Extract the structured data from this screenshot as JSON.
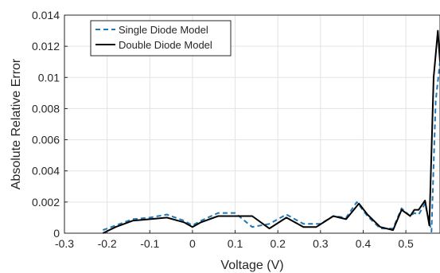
{
  "chart_data": {
    "type": "line",
    "xlabel": "Voltage (V)",
    "ylabel": "Absolute Relative Error",
    "xlim": [
      -0.3,
      0.58
    ],
    "ylim": [
      0,
      0.014
    ],
    "x_ticks": [
      -0.3,
      -0.2,
      -0.1,
      0,
      0.1,
      0.2,
      0.3,
      0.4,
      0.5
    ],
    "x_tick_labels": [
      "-0.3",
      "-0.2",
      "-0.1",
      "0",
      "0.1",
      "0.2",
      "0.3",
      "0.4",
      "0.5"
    ],
    "y_ticks": [
      0,
      0.002,
      0.004,
      0.006,
      0.008,
      0.01,
      0.012,
      0.014
    ],
    "y_tick_labels": [
      "0",
      "0.002",
      "0.004",
      "0.006",
      "0.008",
      "0.01",
      "0.012",
      "0.014"
    ],
    "grid": true,
    "legend_position": "top-left",
    "series": [
      {
        "name": "Single Diode Model",
        "style": "dashed",
        "color": "#1f77b4",
        "x": [
          -0.21,
          -0.18,
          -0.14,
          -0.1,
          -0.06,
          -0.02,
          0.0,
          0.02,
          0.06,
          0.1,
          0.14,
          0.18,
          0.22,
          0.26,
          0.3,
          0.33,
          0.36,
          0.385,
          0.41,
          0.44,
          0.47,
          0.49,
          0.51,
          0.52,
          0.53,
          0.545,
          0.56,
          0.57,
          0.58
        ],
        "y": [
          0.0002,
          0.0005,
          0.0009,
          0.001,
          0.0012,
          0.0008,
          0.0005,
          0.0008,
          0.0013,
          0.0013,
          0.0004,
          0.0006,
          0.0012,
          0.0006,
          0.0006,
          0.0011,
          0.001,
          0.002,
          0.0011,
          0.0003,
          0.0003,
          0.0016,
          0.0011,
          0.0013,
          0.0012,
          0.0019,
          0.0001,
          0.0085,
          0.011
        ]
      },
      {
        "name": "Double Diode Model",
        "style": "solid",
        "color": "#000000",
        "x": [
          -0.21,
          -0.18,
          -0.14,
          -0.1,
          -0.06,
          -0.02,
          0.0,
          0.02,
          0.06,
          0.1,
          0.14,
          0.18,
          0.22,
          0.26,
          0.29,
          0.33,
          0.36,
          0.39,
          0.41,
          0.44,
          0.47,
          0.49,
          0.51,
          0.52,
          0.53,
          0.545,
          0.555,
          0.565,
          0.575,
          0.58
        ],
        "y": [
          0.0,
          0.0004,
          0.0008,
          0.0009,
          0.001,
          0.0007,
          0.0004,
          0.0007,
          0.0011,
          0.0011,
          0.0011,
          0.0003,
          0.001,
          0.0004,
          0.0004,
          0.0011,
          0.0009,
          0.0019,
          0.0012,
          0.0004,
          0.0002,
          0.0015,
          0.0011,
          0.0015,
          0.0015,
          0.0021,
          0.0005,
          0.01,
          0.013,
          0.011
        ]
      }
    ]
  }
}
